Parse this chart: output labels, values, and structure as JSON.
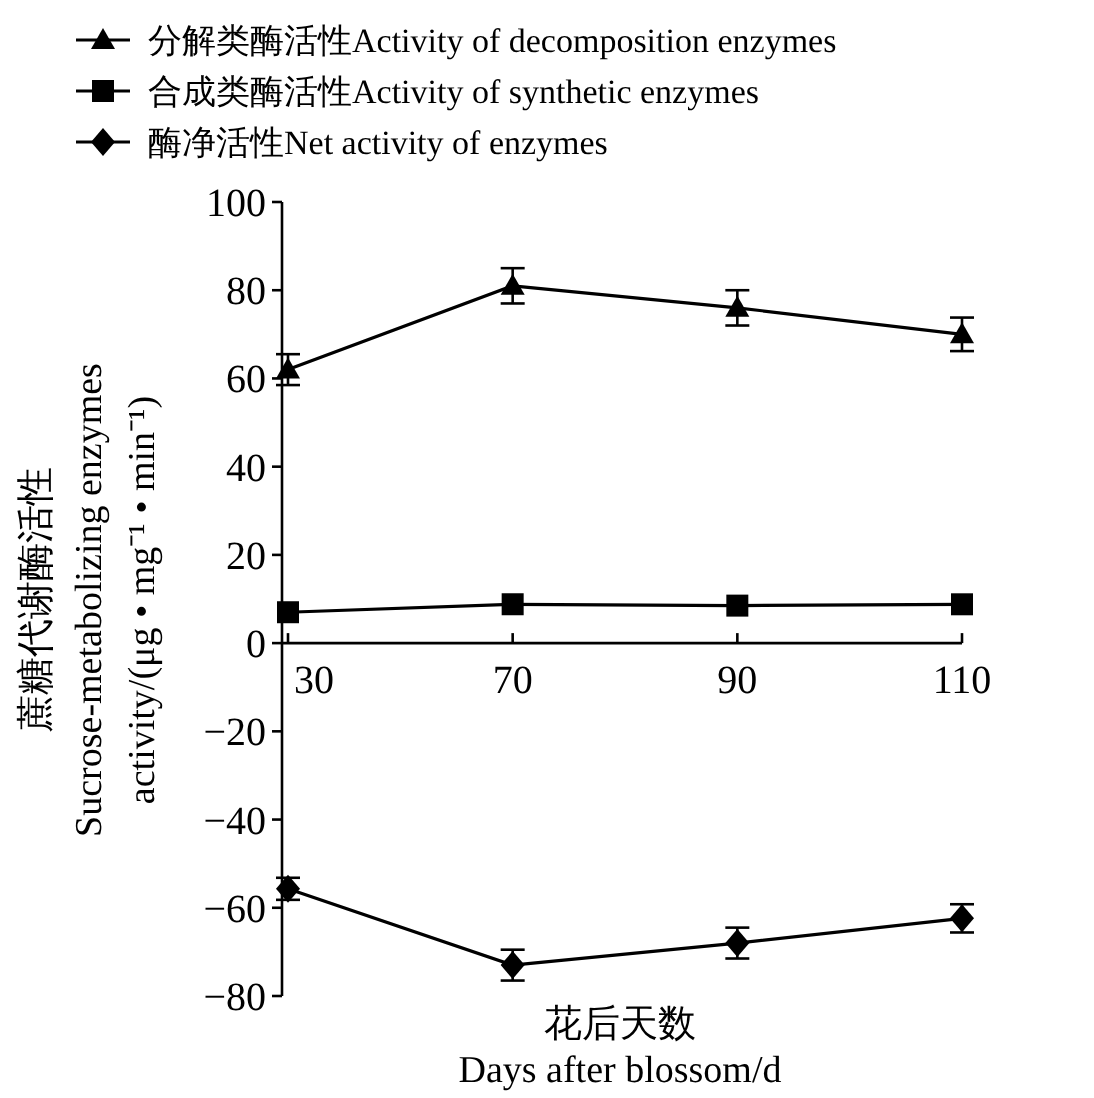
{
  "chart_data": {
    "type": "line",
    "categories": [
      "30",
      "70",
      "90",
      "110"
    ],
    "series": [
      {
        "name": "分解类酶活性Activity of decomposition enzymes",
        "color": "#000000",
        "marker": "triangle",
        "values": [
          62,
          81,
          76,
          70
        ],
        "errors": [
          3.5,
          4,
          4,
          3.8
        ]
      },
      {
        "name": "合成类酶活性Activity of synthetic enzymes",
        "color": "#000000",
        "marker": "square",
        "values": [
          7,
          8.8,
          8.5,
          8.8
        ]
      },
      {
        "name": "酶净活性Net activity of enzymes",
        "color": "#000000",
        "marker": "diamond",
        "values": [
          -55.7,
          -73,
          -68,
          -62.4
        ],
        "errors": [
          2.5,
          3.5,
          3.5,
          3.2
        ]
      }
    ],
    "ylim": [
      -80,
      100
    ],
    "yticks": [
      -80,
      -60,
      -40,
      -20,
      0,
      20,
      40,
      60,
      80,
      100
    ],
    "ylabel": "蔗糖代谢酶活性\nSucrose-metabolizing enzymes\nactivity/(μg • mg⁻¹ • min⁻¹)",
    "xlabel": "花后天数\nDays after blossom/d",
    "legend": "top left",
    "grid": false
  }
}
